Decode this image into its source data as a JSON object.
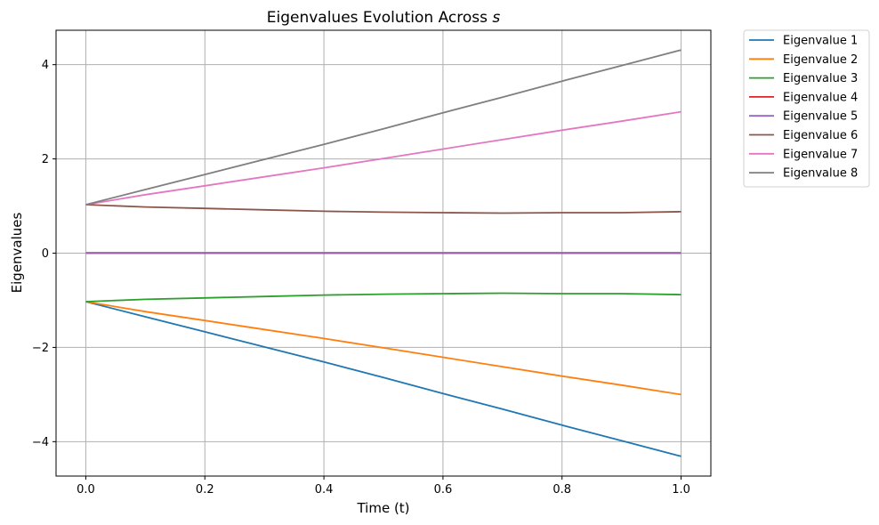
{
  "chart_data": {
    "type": "line",
    "title_main": "Eigenvalues Evolution Across ",
    "title_var": "s",
    "xlabel": "Time (t)",
    "ylabel": "Eigenvalues",
    "xlim": [
      -0.05,
      1.05
    ],
    "ylim": [
      -4.73,
      4.73
    ],
    "xticks": [
      0.0,
      0.2,
      0.4,
      0.6,
      0.8,
      1.0
    ],
    "xtick_labels": [
      "0.0",
      "0.2",
      "0.4",
      "0.6",
      "0.8",
      "1.0"
    ],
    "yticks": [
      -4,
      -2,
      0,
      2,
      4
    ],
    "ytick_labels": [
      "−4",
      "−2",
      "0",
      "2",
      "4"
    ],
    "grid": true,
    "legend_placement": "outside-top-right",
    "x": [
      0.0,
      0.1,
      0.2,
      0.3,
      0.4,
      0.5,
      0.6,
      0.7,
      0.8,
      0.9,
      1.0
    ],
    "series": [
      {
        "name": "Eigenvalue 1",
        "color": "#1f77b4",
        "values": [
          -1.03,
          -1.35,
          -1.67,
          -1.99,
          -2.31,
          -2.64,
          -2.98,
          -3.31,
          -3.65,
          -3.98,
          -4.31
        ]
      },
      {
        "name": "Eigenvalue 2",
        "color": "#ff7f0e",
        "values": [
          -1.03,
          -1.24,
          -1.43,
          -1.62,
          -1.81,
          -2.01,
          -2.21,
          -2.41,
          -2.61,
          -2.8,
          -3.0
        ]
      },
      {
        "name": "Eigenvalue 3",
        "color": "#2ca02c",
        "values": [
          -1.03,
          -0.98,
          -0.95,
          -0.92,
          -0.89,
          -0.87,
          -0.86,
          -0.85,
          -0.86,
          -0.86,
          -0.88
        ]
      },
      {
        "name": "Eigenvalue 4",
        "color": "#d62728",
        "values": [
          0.0,
          0.0,
          0.0,
          0.0,
          0.0,
          0.0,
          0.0,
          0.0,
          0.0,
          0.0,
          0.0
        ]
      },
      {
        "name": "Eigenvalue 5",
        "color": "#9467bd",
        "values": [
          0.01,
          0.01,
          0.01,
          0.01,
          0.01,
          0.01,
          0.01,
          0.01,
          0.01,
          0.01,
          0.01
        ]
      },
      {
        "name": "Eigenvalue 6",
        "color": "#8c564b",
        "values": [
          1.03,
          0.98,
          0.95,
          0.92,
          0.89,
          0.87,
          0.86,
          0.85,
          0.86,
          0.86,
          0.88
        ]
      },
      {
        "name": "Eigenvalue 7",
        "color": "#e377c2",
        "values": [
          1.03,
          1.24,
          1.43,
          1.62,
          1.81,
          2.01,
          2.21,
          2.41,
          2.61,
          2.8,
          3.0
        ]
      },
      {
        "name": "Eigenvalue 8",
        "color": "#7f7f7f",
        "values": [
          1.03,
          1.35,
          1.67,
          1.99,
          2.31,
          2.64,
          2.98,
          3.31,
          3.65,
          3.98,
          4.31
        ]
      }
    ]
  }
}
